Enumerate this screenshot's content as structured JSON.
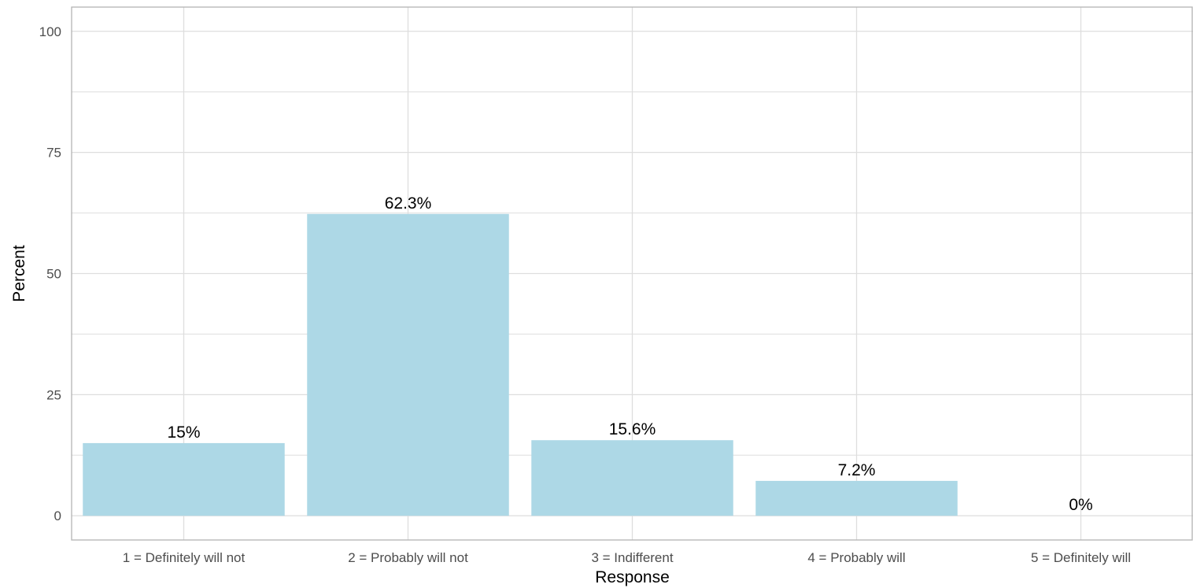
{
  "chart_data": {
    "type": "bar",
    "title": "",
    "xlabel": "Response",
    "ylabel": "Percent",
    "categories": [
      "1 = Definitely will not",
      "2 = Probably will not",
      "3 = Indifferent",
      "4 = Probably will",
      "5 = Definitely will"
    ],
    "values": [
      15,
      62.3,
      15.6,
      7.2,
      0
    ],
    "data_labels": [
      "15%",
      "62.3%",
      "15.6%",
      "7.2%",
      "0%"
    ],
    "y_ticks": [
      0,
      25,
      50,
      75,
      100
    ],
    "y_tick_labels": [
      "0",
      "25",
      "50",
      "75",
      "100"
    ],
    "ylim": [
      -5,
      105
    ],
    "grid": true,
    "bar_color": "#add8e6",
    "grid_color": "#dedede",
    "panel_border_color": "#b3b3b3"
  }
}
